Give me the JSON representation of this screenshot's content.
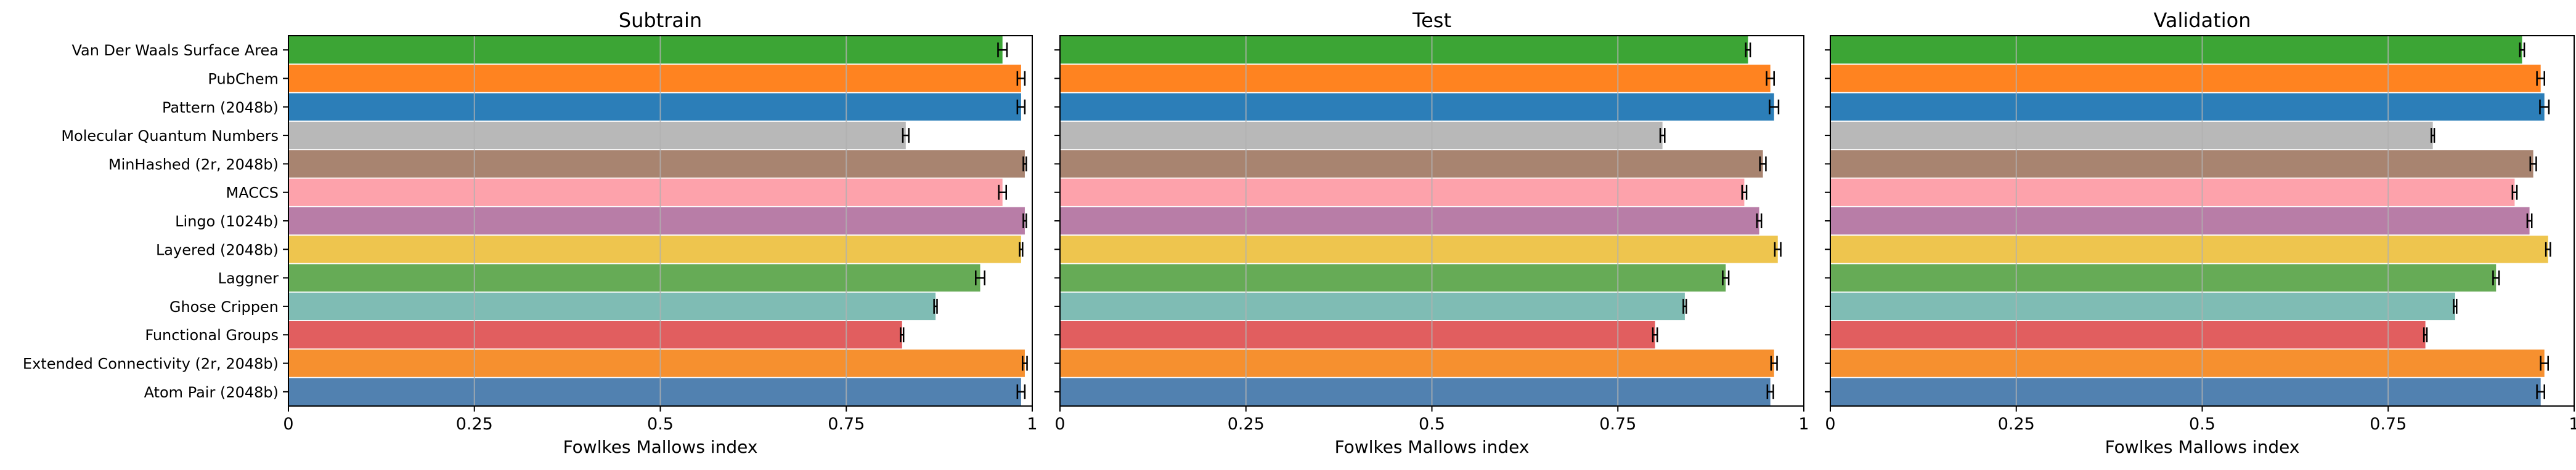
{
  "chart_data": {
    "type": "bar",
    "orientation": "horizontal",
    "categories": [
      "Van Der Waals Surface Area",
      "PubChem",
      "Pattern (2048b)",
      "Molecular Quantum Numbers",
      "MinHashed (2r, 2048b)",
      "MACCS",
      "Lingo (1024b)",
      "Layered (2048b)",
      "Laggner",
      "Ghose Crippen",
      "Functional Groups",
      "Extended Connectivity (2r, 2048b)",
      "Atom Pair (2048b)"
    ],
    "colors": [
      "#3ca535",
      "#ff8320",
      "#2c7eb8",
      "#b8b8b8",
      "#a88470",
      "#fda2ab",
      "#b87da7",
      "#eec54e",
      "#66ab56",
      "#7fbcb4",
      "#e15e5f",
      "#f6902f",
      "#5181b0"
    ],
    "xlim": [
      0,
      1
    ],
    "xticks": [
      "0",
      "0.25",
      "0.5",
      "0.75",
      "1"
    ],
    "xtick_values": [
      0,
      0.25,
      0.5,
      0.75,
      1
    ],
    "grid": "vertical",
    "panels": [
      {
        "title": "Subtrain",
        "xlabel": "Fowlkes Mallows index",
        "values": [
          0.96,
          0.985,
          0.985,
          0.83,
          0.99,
          0.96,
          0.99,
          0.985,
          0.93,
          0.87,
          0.825,
          0.99,
          0.985
        ],
        "errors": [
          0.006,
          0.005,
          0.005,
          0.004,
          0.002,
          0.005,
          0.002,
          0.002,
          0.006,
          0.002,
          0.002,
          0.003,
          0.005
        ]
      },
      {
        "title": "Test",
        "xlabel": "Fowlkes Mallows index",
        "values": [
          0.925,
          0.955,
          0.96,
          0.81,
          0.945,
          0.92,
          0.94,
          0.965,
          0.895,
          0.84,
          0.8,
          0.96,
          0.955
        ],
        "errors": [
          0.003,
          0.005,
          0.006,
          0.003,
          0.004,
          0.003,
          0.003,
          0.004,
          0.004,
          0.002,
          0.003,
          0.004,
          0.004
        ]
      },
      {
        "title": "Validation",
        "xlabel": "Fowlkes Mallows index",
        "values": [
          0.93,
          0.955,
          0.96,
          0.81,
          0.945,
          0.92,
          0.94,
          0.965,
          0.895,
          0.84,
          0.8,
          0.96,
          0.955
        ],
        "errors": [
          0.003,
          0.005,
          0.006,
          0.002,
          0.004,
          0.003,
          0.003,
          0.003,
          0.004,
          0.002,
          0.002,
          0.005,
          0.005
        ]
      }
    ]
  }
}
